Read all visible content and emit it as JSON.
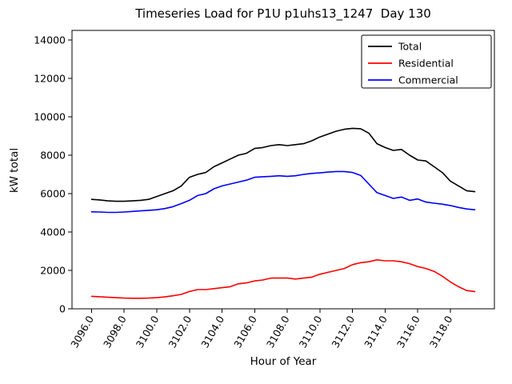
{
  "chart_data": {
    "type": "line",
    "title": "Timeseries Load for P1U p1uhs13_1247  Day 130",
    "xlabel": "Hour of Year",
    "ylabel": "kW total",
    "xlim": [
      3094.8,
      3120.7
    ],
    "ylim": [
      0,
      14500
    ],
    "x_ticks": [
      3096,
      3098,
      3100,
      3102,
      3104,
      3106,
      3108,
      3110,
      3112,
      3114,
      3116,
      3118
    ],
    "x_tick_labels": [
      "3096.0",
      "3098.0",
      "3100.0",
      "3102.0",
      "3104.0",
      "3106.0",
      "3108.0",
      "3110.0",
      "3112.0",
      "3114.0",
      "3116.0",
      "3118.0"
    ],
    "y_ticks": [
      0,
      2000,
      4000,
      6000,
      8000,
      10000,
      12000,
      14000
    ],
    "y_tick_labels": [
      "0",
      "2000",
      "4000",
      "6000",
      "8000",
      "10000",
      "12000",
      "14000"
    ],
    "grid": false,
    "legend_position": "upper right",
    "x": [
      3096.0,
      3096.5,
      3097.0,
      3097.5,
      3098.0,
      3098.5,
      3099.0,
      3099.5,
      3100.0,
      3100.5,
      3101.0,
      3101.5,
      3102.0,
      3102.5,
      3103.0,
      3103.5,
      3104.0,
      3104.5,
      3105.0,
      3105.5,
      3106.0,
      3106.5,
      3107.0,
      3107.5,
      3108.0,
      3108.5,
      3109.0,
      3109.5,
      3110.0,
      3110.5,
      3111.0,
      3111.5,
      3112.0,
      3112.5,
      3113.0,
      3113.5,
      3114.0,
      3114.5,
      3115.0,
      3115.5,
      3116.0,
      3116.5,
      3117.0,
      3117.5,
      3118.0,
      3118.5,
      3119.0,
      3119.5
    ],
    "series": [
      {
        "name": "Total",
        "color": "#000000",
        "values": [
          5700,
          5670,
          5620,
          5600,
          5600,
          5620,
          5650,
          5700,
          5850,
          6000,
          6150,
          6400,
          6850,
          7000,
          7100,
          7400,
          7600,
          7800,
          8000,
          8100,
          8350,
          8400,
          8500,
          8550,
          8500,
          8550,
          8600,
          8750,
          8950,
          9100,
          9250,
          9350,
          9400,
          9380,
          9150,
          8600,
          8400,
          8250,
          8300,
          8000,
          7750,
          7700,
          7400,
          7100,
          6650,
          6400,
          6150,
          6100
        ]
      },
      {
        "name": "Residential",
        "color": "#ff0000",
        "values": [
          650,
          630,
          600,
          580,
          560,
          550,
          550,
          560,
          580,
          620,
          680,
          750,
          900,
          1000,
          1000,
          1050,
          1100,
          1150,
          1300,
          1350,
          1450,
          1500,
          1600,
          1600,
          1600,
          1550,
          1600,
          1650,
          1800,
          1900,
          2000,
          2100,
          2300,
          2400,
          2450,
          2550,
          2500,
          2500,
          2450,
          2350,
          2200,
          2100,
          1950,
          1700,
          1400,
          1150,
          950,
          900
        ]
      },
      {
        "name": "Commercial",
        "color": "#0000ff",
        "values": [
          5050,
          5040,
          5020,
          5020,
          5040,
          5070,
          5100,
          5130,
          5160,
          5220,
          5320,
          5480,
          5650,
          5900,
          6000,
          6250,
          6400,
          6500,
          6600,
          6700,
          6850,
          6880,
          6900,
          6930,
          6900,
          6930,
          7000,
          7050,
          7080,
          7120,
          7150,
          7150,
          7100,
          6950,
          6500,
          6050,
          5900,
          5750,
          5820,
          5650,
          5720,
          5560,
          5500,
          5450,
          5380,
          5280,
          5200,
          5160
        ]
      }
    ]
  }
}
